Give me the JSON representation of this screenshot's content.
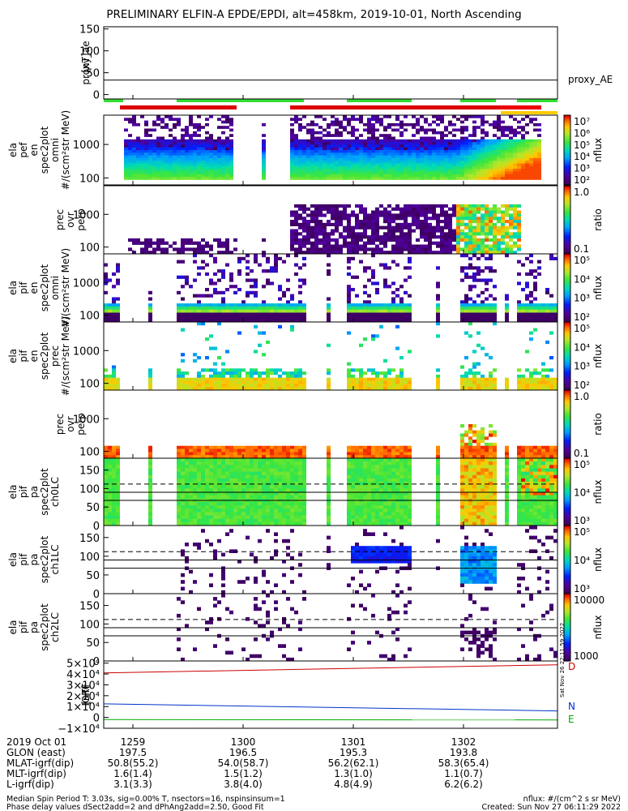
{
  "title": "PRELIMINARY ELFIN-A EPDE/EPDI, alt=458km, 2019-10-01, North Ascending",
  "chart_data": [
    {
      "id": "proxy_ae",
      "type": "line",
      "ylabel": [
        "proxy_ae",
        "[nT]"
      ],
      "yticks": [
        "150",
        "100",
        "50",
        "0"
      ],
      "ytick_values": [
        150,
        100,
        50,
        0
      ],
      "ylim": [
        -10,
        155
      ],
      "series": [
        {
          "name": "proxy_AE",
          "values": [
            33,
            33,
            33
          ]
        }
      ]
    },
    {
      "id": "ela_pef_en_spec2plot_omni",
      "type": "heatmap",
      "ylabel": [
        "ela",
        "pef",
        "en",
        "spec2plot",
        "omni",
        "#/(scm²str MeV)"
      ],
      "yticks": [
        "1000",
        "100"
      ],
      "ytick_values": [
        1000,
        100
      ],
      "colorbar": {
        "label": "nflux",
        "ticks": [
          "10⁷",
          "10⁶",
          "10⁵",
          "10⁴",
          "10³",
          "10²"
        ]
      }
    },
    {
      "id": "prec_ovr_perp_e",
      "type": "heatmap",
      "ylabel": [
        "prec",
        "ovr",
        "perp"
      ],
      "yticks": [
        "1000",
        "100"
      ],
      "ytick_values": [
        1000,
        100
      ],
      "colorbar": {
        "label": "ratio",
        "ticks": [
          "1.0",
          "0.1"
        ]
      }
    },
    {
      "id": "ela_pif_en_spec2plot_omni",
      "type": "heatmap",
      "ylabel": [
        "ela",
        "pif",
        "en",
        "spec2plot",
        "omni",
        "#/(scm²str MeV)"
      ],
      "yticks": [
        "1000",
        "100"
      ],
      "ytick_values": [
        1000,
        100
      ],
      "colorbar": {
        "label": "nflux",
        "ticks": [
          "10⁵",
          "10⁴",
          "10³",
          "10²"
        ]
      }
    },
    {
      "id": "ela_pif_en_spec2plot_prec",
      "type": "heatmap",
      "ylabel": [
        "ela",
        "pif",
        "en",
        "spec2plot",
        "prec",
        "#/(scm²str MeV)"
      ],
      "yticks": [
        "1000",
        "100"
      ],
      "ytick_values": [
        1000,
        100
      ],
      "colorbar": {
        "label": "nflux",
        "ticks": [
          "10⁵",
          "10⁴",
          "10³",
          "10²"
        ]
      }
    },
    {
      "id": "prec_ovr_perp_i",
      "type": "heatmap",
      "ylabel": [
        "prec",
        "ovr",
        "perp"
      ],
      "yticks": [
        "1000",
        "100"
      ],
      "ytick_values": [
        1000,
        100
      ],
      "colorbar": {
        "label": "ratio",
        "ticks": [
          "1.0",
          "0.1"
        ]
      }
    },
    {
      "id": "ela_pif_pa_spec2plot_ch0LC",
      "type": "heatmap",
      "ylabel": [
        "ela",
        "pif",
        "pa",
        "spec2plot",
        "ch0LC"
      ],
      "yticks": [
        "150",
        "100",
        "50",
        "0"
      ],
      "ytick_values": [
        150,
        100,
        50,
        0
      ],
      "colorbar": {
        "label": "nflux",
        "ticks": [
          "10⁵",
          "10⁴",
          "10³"
        ]
      }
    },
    {
      "id": "ela_pif_pa_spec2plot_ch1LC",
      "type": "heatmap",
      "ylabel": [
        "ela",
        "pif",
        "pa",
        "spec2plot",
        "ch1LC"
      ],
      "yticks": [
        "150",
        "100",
        "50",
        "0"
      ],
      "ytick_values": [
        150,
        100,
        50,
        0
      ],
      "colorbar": {
        "label": "nflux",
        "ticks": [
          "10⁵",
          "10⁴",
          "10³"
        ]
      }
    },
    {
      "id": "ela_pif_pa_spec2plot_ch2LC",
      "type": "heatmap",
      "ylabel": [
        "ela",
        "pif",
        "pa",
        "spec2plot",
        "ch2LC"
      ],
      "yticks": [
        "150",
        "100",
        "50",
        "0"
      ],
      "ytick_values": [
        150,
        100,
        50,
        0
      ],
      "colorbar": {
        "label": "nflux",
        "ticks": [
          "10000",
          "1000"
        ]
      }
    },
    {
      "id": "igrf",
      "type": "line",
      "ylabel": [
        "IGRF",
        "[nT]"
      ],
      "yticks": [
        "5×10⁴",
        "4×10⁴",
        "3×10⁴",
        "2×10⁴",
        "1×10⁴",
        "0",
        "−1×10⁴"
      ],
      "ytick_values": [
        50000,
        40000,
        30000,
        20000,
        10000,
        0,
        -10000
      ],
      "ylim": [
        -10000,
        52000
      ],
      "series": [
        {
          "name": "D",
          "color": "#cc0000",
          "values": [
            41000,
            48500
          ]
        },
        {
          "name": "N",
          "color": "#0033cc",
          "values": [
            12500,
            6000
          ]
        },
        {
          "name": "E",
          "color": "#00aa00",
          "values": [
            -2000,
            -2300
          ]
        }
      ],
      "stamp": "Sat Nov 26 22:11:59 2022"
    }
  ],
  "x_axis": {
    "rows": [
      {
        "label": "2019 Oct 01",
        "values": [
          "1259",
          "1300",
          "1301",
          "1302"
        ]
      },
      {
        "label": "GLON (east)",
        "values": [
          "197.5",
          "196.5",
          "195.3",
          "193.8"
        ]
      },
      {
        "label": "MLAT-igrf(dip)",
        "values": [
          "50.8(55.2)",
          "54.0(58.7)",
          "56.2(62.1)",
          "58.3(65.4)"
        ]
      },
      {
        "label": "MLT-igrf(dip)",
        "values": [
          "1.6(1.4)",
          "1.5(1.2)",
          "1.3(1.0)",
          "1.1(0.7)"
        ]
      },
      {
        "label": "L-igrf(dip)",
        "values": [
          "3.1(3.3)",
          "3.8(4.0)",
          "4.8(4.9)",
          "6.2(6.2)"
        ]
      }
    ]
  },
  "footer": {
    "line1": "Median Spin Period T: 3.03s, sig=0.00% T, nsectors=16, nspinsinsum=1",
    "line2": "Phase delay values dSect2add=2 and dPhAng2add=2.50, Good Fit",
    "units": "nflux: #/(cm^2 s sr MeV)",
    "created": "Created: Sun Nov 27 06:11:29 2022"
  }
}
